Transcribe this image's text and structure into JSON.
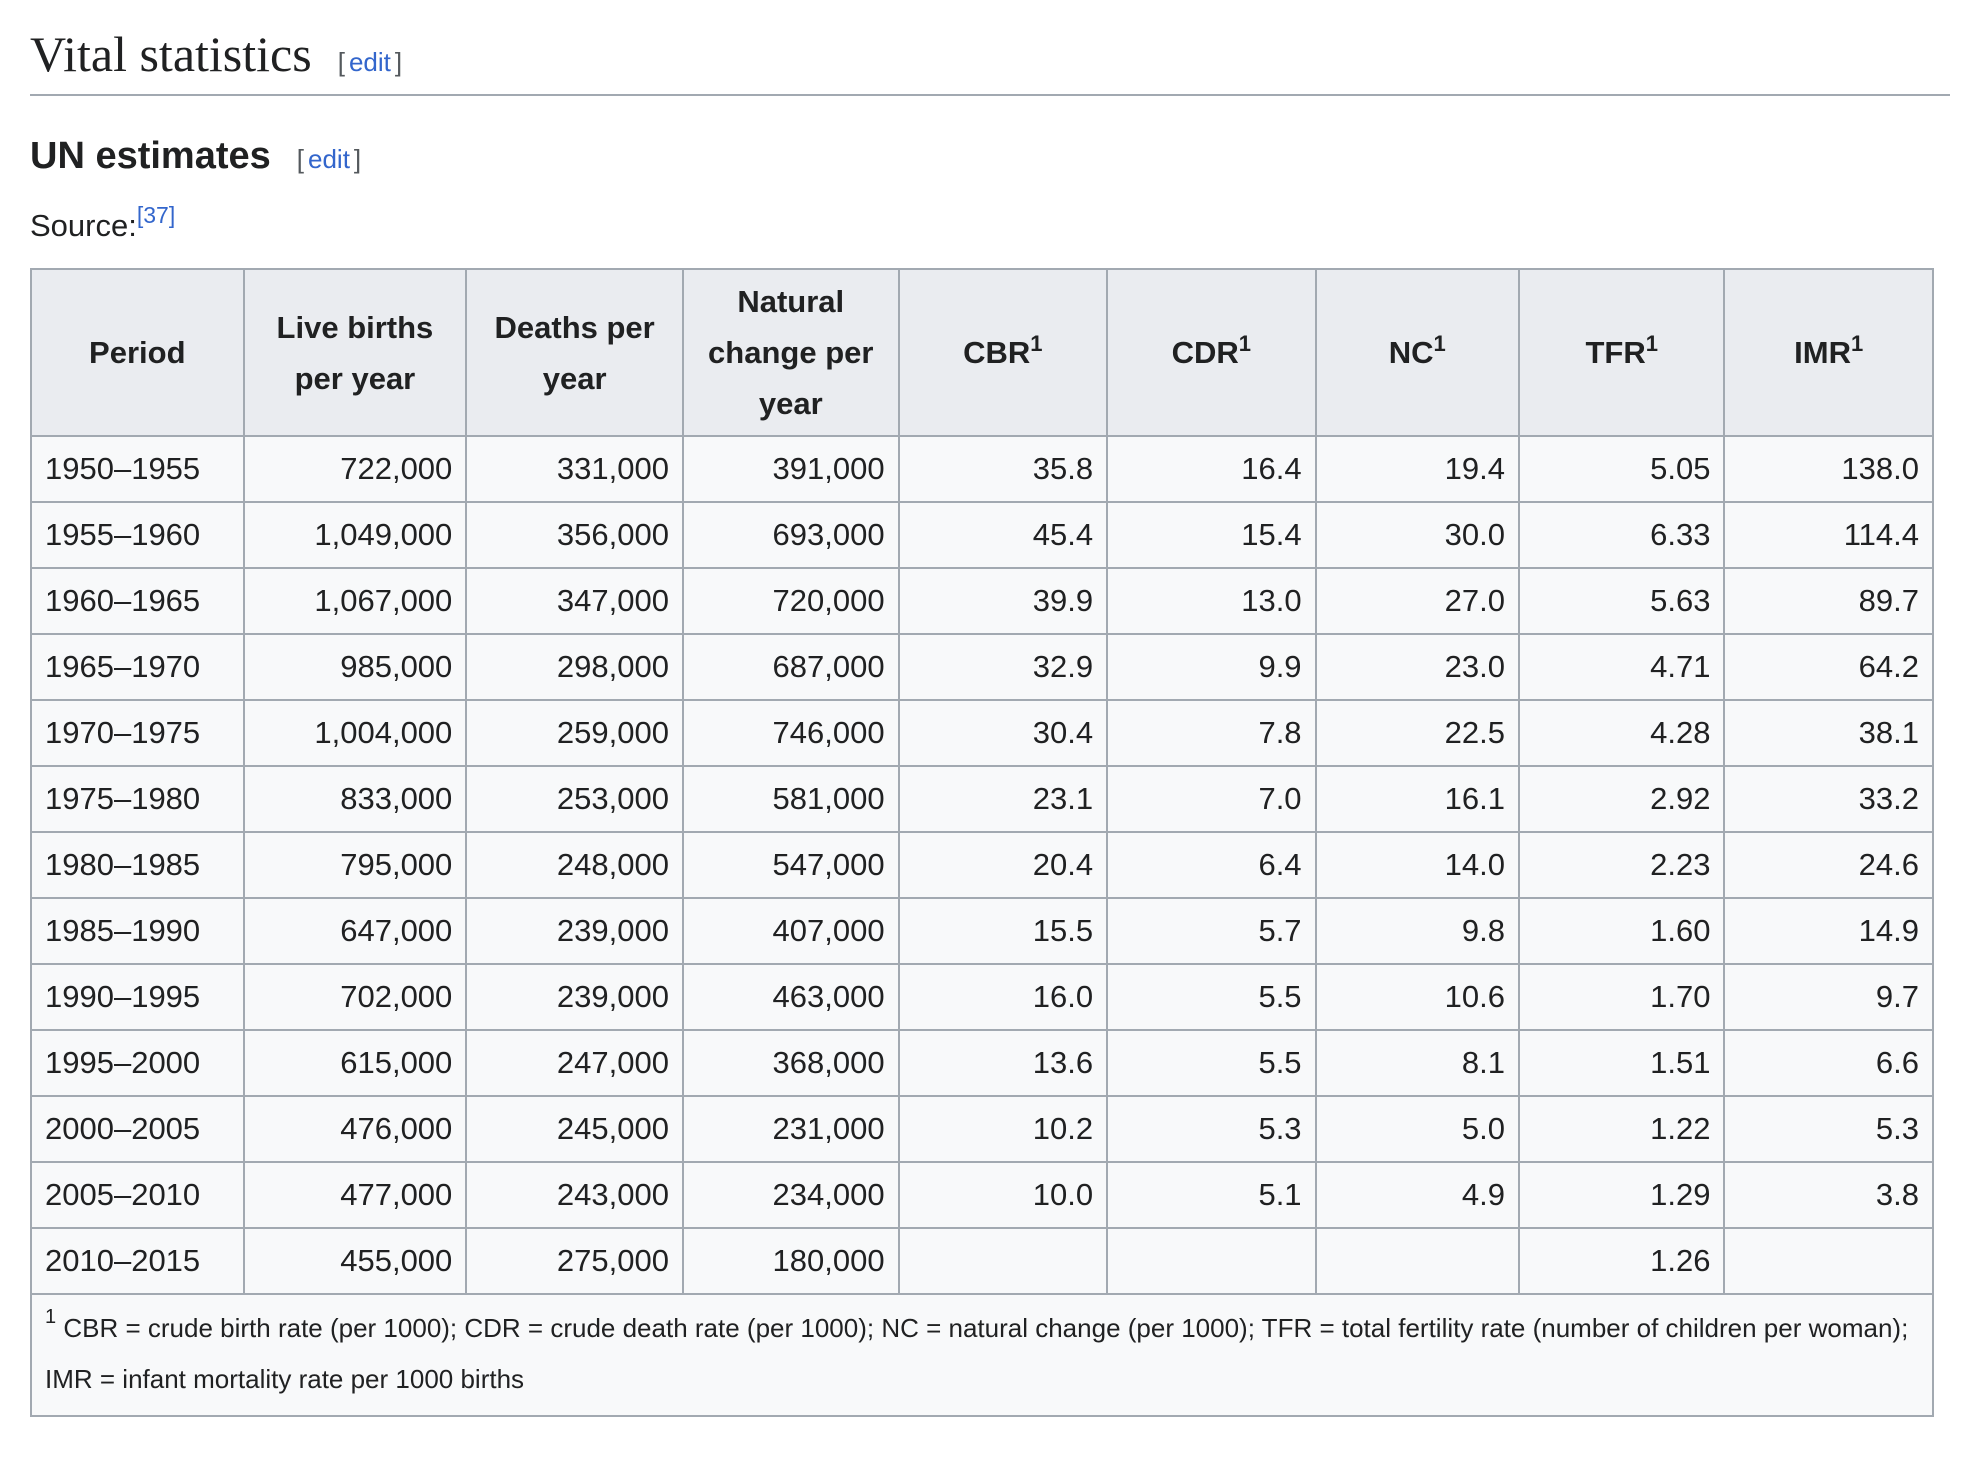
{
  "section": {
    "title": "Vital statistics",
    "edit_open": "[",
    "edit_label": "edit",
    "edit_close": "]"
  },
  "subsection": {
    "title": "UN estimates",
    "edit_open": "[",
    "edit_label": "edit",
    "edit_close": "]"
  },
  "source": {
    "label": "Source:",
    "ref": "[37]"
  },
  "table": {
    "headers": [
      {
        "text": "Period",
        "sup": ""
      },
      {
        "text": "Live births per year",
        "sup": ""
      },
      {
        "text": "Deaths per year",
        "sup": ""
      },
      {
        "text": "Natural change per year",
        "sup": ""
      },
      {
        "text": "CBR",
        "sup": "1"
      },
      {
        "text": "CDR",
        "sup": "1"
      },
      {
        "text": "NC",
        "sup": "1"
      },
      {
        "text": "TFR",
        "sup": "1"
      },
      {
        "text": "IMR",
        "sup": "1"
      }
    ],
    "rows": [
      [
        "1950–1955",
        "722,000",
        "331,000",
        "391,000",
        "35.8",
        "16.4",
        "19.4",
        "5.05",
        "138.0"
      ],
      [
        "1955–1960",
        "1,049,000",
        "356,000",
        "693,000",
        "45.4",
        "15.4",
        "30.0",
        "6.33",
        "114.4"
      ],
      [
        "1960–1965",
        "1,067,000",
        "347,000",
        "720,000",
        "39.9",
        "13.0",
        "27.0",
        "5.63",
        "89.7"
      ],
      [
        "1965–1970",
        "985,000",
        "298,000",
        "687,000",
        "32.9",
        "9.9",
        "23.0",
        "4.71",
        "64.2"
      ],
      [
        "1970–1975",
        "1,004,000",
        "259,000",
        "746,000",
        "30.4",
        "7.8",
        "22.5",
        "4.28",
        "38.1"
      ],
      [
        "1975–1980",
        "833,000",
        "253,000",
        "581,000",
        "23.1",
        "7.0",
        "16.1",
        "2.92",
        "33.2"
      ],
      [
        "1980–1985",
        "795,000",
        "248,000",
        "547,000",
        "20.4",
        "6.4",
        "14.0",
        "2.23",
        "24.6"
      ],
      [
        "1985–1990",
        "647,000",
        "239,000",
        "407,000",
        "15.5",
        "5.7",
        "9.8",
        "1.60",
        "14.9"
      ],
      [
        "1990–1995",
        "702,000",
        "239,000",
        "463,000",
        "16.0",
        "5.5",
        "10.6",
        "1.70",
        "9.7"
      ],
      [
        "1995–2000",
        "615,000",
        "247,000",
        "368,000",
        "13.6",
        "5.5",
        "8.1",
        "1.51",
        "6.6"
      ],
      [
        "2000–2005",
        "476,000",
        "245,000",
        "231,000",
        "10.2",
        "5.3",
        "5.0",
        "1.22",
        "5.3"
      ],
      [
        "2005–2010",
        "477,000",
        "243,000",
        "234,000",
        "10.0",
        "5.1",
        "4.9",
        "1.29",
        "3.8"
      ],
      [
        "2010–2015",
        "455,000",
        "275,000",
        "180,000",
        "",
        "",
        "",
        "1.26",
        ""
      ]
    ],
    "footnote_marker": "1",
    "footnote": "CBR = crude birth rate (per 1000); CDR = crude death rate (per 1000); NC = natural change (per 1000); TFR = total fertility rate (number of children per woman); IMR = infant mortality rate per 1000 births"
  },
  "colors": {
    "link": "#3366cc",
    "header_bg": "#eaecf0",
    "table_bg": "#f8f9fa",
    "border": "#a2a9b1"
  }
}
